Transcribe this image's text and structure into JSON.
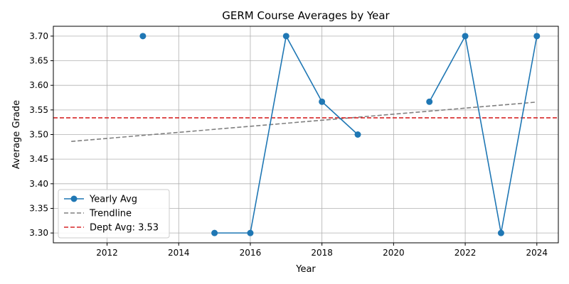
{
  "chart_data": {
    "type": "line",
    "title": "GERM Course Averages by Year",
    "xlabel": "Year",
    "ylabel": "Average Grade",
    "xlim": [
      2010.5,
      2024.6
    ],
    "ylim": [
      3.28,
      3.72
    ],
    "x_ticks": [
      2012,
      2014,
      2016,
      2018,
      2020,
      2022,
      2024
    ],
    "y_ticks": [
      3.3,
      3.35,
      3.4,
      3.45,
      3.5,
      3.55,
      3.6,
      3.65,
      3.7
    ],
    "grid": true,
    "legend_position": "lower-left",
    "series": [
      {
        "name": "Yearly Avg",
        "style": "line-with-markers",
        "color": "#1f77b4",
        "segments": [
          {
            "x": [
              2013
            ],
            "y": [
              3.7
            ]
          },
          {
            "x": [
              2015,
              2016,
              2017,
              2018,
              2019
            ],
            "y": [
              3.3,
              3.3,
              3.7,
              3.5667,
              3.5
            ]
          },
          {
            "x": [
              2021,
              2022,
              2023,
              2024
            ],
            "y": [
              3.5667,
              3.7,
              3.3,
              3.7
            ]
          }
        ]
      },
      {
        "name": "Trendline",
        "style": "dashed",
        "color": "#808080",
        "x": [
          2011,
          2024
        ],
        "y": [
          3.486,
          3.566
        ]
      },
      {
        "name": "Dept Avg: 3.53",
        "style": "dashed-horizontal",
        "color": "#d62728",
        "y": 3.534
      }
    ]
  }
}
